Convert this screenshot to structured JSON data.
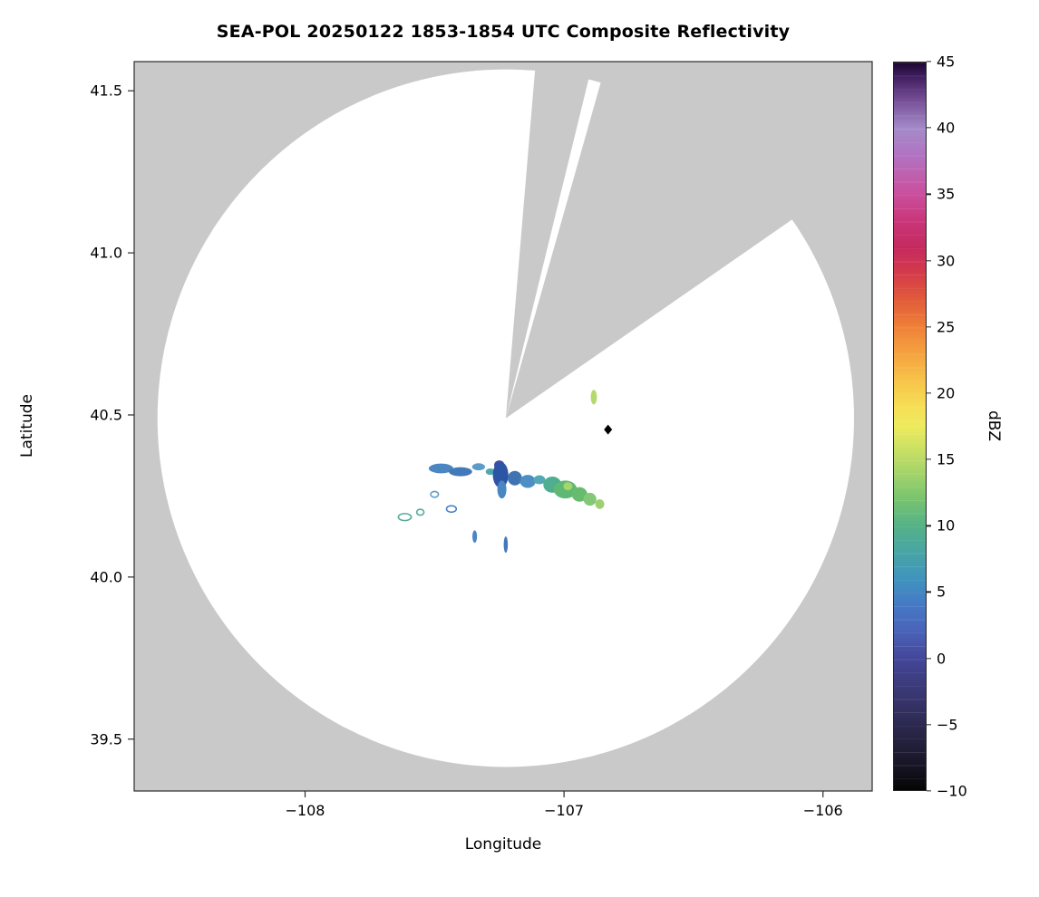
{
  "chart_data": {
    "type": "heatmap",
    "subtype": "radar_composite_reflectivity_ppi",
    "title": "SEA-POL 20250122 1853-1854 UTC Composite Reflectivity",
    "xlabel": "Longitude",
    "ylabel": "Latitude",
    "xlim": [
      -108.66,
      -105.81
    ],
    "ylim": [
      39.34,
      41.59
    ],
    "grid": false,
    "xticks": [
      {
        "v": -108,
        "label": "−108"
      },
      {
        "v": -107,
        "label": "−107"
      },
      {
        "v": -106,
        "label": "−106"
      }
    ],
    "yticks": [
      {
        "v": 39.5,
        "label": "39.5"
      },
      {
        "v": 40.0,
        "label": "40.0"
      },
      {
        "v": 40.5,
        "label": "40.5"
      },
      {
        "v": 41.0,
        "label": "41.0"
      },
      {
        "v": 41.5,
        "label": "41.5"
      }
    ],
    "nodata_color": "#c9c9c9",
    "coverage_color": "#ffffff",
    "frame_color": "#2b2b2b",
    "radar": {
      "center_lon": -107.225,
      "center_lat": 40.49,
      "radius_lon_deg": 1.345,
      "radius_lat_deg": 1.076,
      "blocked_sectors_azimuth_deg": [
        [
          6,
          17
        ],
        [
          19.5,
          61
        ]
      ]
    },
    "site_marker": {
      "lon": -106.83,
      "lat": 40.455,
      "shape": "diamond",
      "color": "#000000"
    },
    "colorbar": {
      "label": "dBZ",
      "min": -10,
      "max": 45,
      "ticks": [
        {
          "v": 45,
          "label": "45"
        },
        {
          "v": 40,
          "label": "40"
        },
        {
          "v": 35,
          "label": "35"
        },
        {
          "v": 30,
          "label": "30"
        },
        {
          "v": 25,
          "label": "25"
        },
        {
          "v": 20,
          "label": "20"
        },
        {
          "v": 15,
          "label": "15"
        },
        {
          "v": 10,
          "label": "10"
        },
        {
          "v": 5,
          "label": "5"
        },
        {
          "v": 0,
          "label": "0"
        },
        {
          "v": -5,
          "label": "−5"
        },
        {
          "v": -10,
          "label": "−10"
        }
      ],
      "stops": [
        [
          -10,
          "#050505"
        ],
        [
          -8,
          "#191627"
        ],
        [
          -6,
          "#262343"
        ],
        [
          -4,
          "#32305f"
        ],
        [
          -2,
          "#3c3b7c"
        ],
        [
          0,
          "#44479b"
        ],
        [
          2,
          "#4a63b8"
        ],
        [
          4,
          "#4579c6"
        ],
        [
          6,
          "#3f94bd"
        ],
        [
          8,
          "#48a5a4"
        ],
        [
          10,
          "#55b287"
        ],
        [
          12,
          "#78c46e"
        ],
        [
          14,
          "#a5d46a"
        ],
        [
          16,
          "#cfe263"
        ],
        [
          17.5,
          "#eeeb5e"
        ],
        [
          19,
          "#f6de55"
        ],
        [
          21,
          "#f7c349"
        ],
        [
          23,
          "#f5a23f"
        ],
        [
          25,
          "#ef8038"
        ],
        [
          27,
          "#e25c3a"
        ],
        [
          29,
          "#d43c49"
        ],
        [
          31,
          "#c52a5e"
        ],
        [
          33,
          "#c93579"
        ],
        [
          35,
          "#cb4f9c"
        ],
        [
          38,
          "#b173c2"
        ],
        [
          40,
          "#a48bc9"
        ],
        [
          42,
          "#7a539b"
        ],
        [
          44,
          "#3f1c5e"
        ],
        [
          45,
          "#1c0630"
        ]
      ]
    },
    "echoes": [
      {
        "lon": -107.475,
        "lat": 40.335,
        "w": 0.095,
        "h": 0.03,
        "color": "#4a86c2",
        "dbz": 4
      },
      {
        "lon": -107.4,
        "lat": 40.325,
        "w": 0.09,
        "h": 0.028,
        "color": "#4279b8",
        "dbz": 3
      },
      {
        "lon": -107.33,
        "lat": 40.34,
        "w": 0.05,
        "h": 0.022,
        "color": "#5d9bc9",
        "dbz": 5
      },
      {
        "lon": -107.285,
        "lat": 40.325,
        "w": 0.035,
        "h": 0.02,
        "color": "#4fa8ad",
        "dbz": 7
      },
      {
        "lon": -107.25,
        "lat": 40.345,
        "w": 0.04,
        "h": 0.03,
        "color": "#474b9e",
        "dbz": -1
      },
      {
        "lon": -107.245,
        "lat": 40.315,
        "w": 0.06,
        "h": 0.08,
        "color": "#2d55a5",
        "dbz": 0
      },
      {
        "lon": -107.24,
        "lat": 40.27,
        "w": 0.035,
        "h": 0.055,
        "color": "#4a86c2",
        "dbz": 4
      },
      {
        "lon": -107.19,
        "lat": 40.305,
        "w": 0.055,
        "h": 0.045,
        "color": "#3f74b3",
        "dbz": 2
      },
      {
        "lon": -107.14,
        "lat": 40.295,
        "w": 0.06,
        "h": 0.04,
        "color": "#4d8ec4",
        "dbz": 5
      },
      {
        "lon": -107.095,
        "lat": 40.3,
        "w": 0.045,
        "h": 0.028,
        "color": "#54a7b4",
        "dbz": 7
      },
      {
        "lon": -107.045,
        "lat": 40.285,
        "w": 0.07,
        "h": 0.05,
        "color": "#4fae8f",
        "dbz": 9
      },
      {
        "lon": -106.995,
        "lat": 40.27,
        "w": 0.09,
        "h": 0.055,
        "color": "#5fb873",
        "dbz": 11
      },
      {
        "lon": -106.985,
        "lat": 40.28,
        "w": 0.035,
        "h": 0.025,
        "color": "#a7d56b",
        "dbz": 15
      },
      {
        "lon": -106.94,
        "lat": 40.255,
        "w": 0.06,
        "h": 0.045,
        "color": "#67bb6f",
        "dbz": 12
      },
      {
        "lon": -106.9,
        "lat": 40.24,
        "w": 0.05,
        "h": 0.04,
        "color": "#83c877",
        "dbz": 13
      },
      {
        "lon": -106.862,
        "lat": 40.225,
        "w": 0.035,
        "h": 0.03,
        "color": "#9ed072",
        "dbz": 14
      },
      {
        "lon": -107.615,
        "lat": 40.185,
        "w": 0.05,
        "h": 0.022,
        "color": "#56ab9b",
        "dbz": 8,
        "outline": true
      },
      {
        "lon": -107.555,
        "lat": 40.2,
        "w": 0.028,
        "h": 0.018,
        "color": "#56ab9b",
        "dbz": 8,
        "outline": true
      },
      {
        "lon": -107.5,
        "lat": 40.255,
        "w": 0.03,
        "h": 0.018,
        "color": "#5d9bc9",
        "dbz": 5,
        "outline": true
      },
      {
        "lon": -107.435,
        "lat": 40.21,
        "w": 0.038,
        "h": 0.02,
        "color": "#4a86c2",
        "dbz": 4,
        "outline": true
      },
      {
        "lon": -107.345,
        "lat": 40.125,
        "w": 0.018,
        "h": 0.038,
        "color": "#4a86c2",
        "dbz": 4
      },
      {
        "lon": -107.225,
        "lat": 40.1,
        "w": 0.016,
        "h": 0.05,
        "color": "#4279b8",
        "dbz": 3
      },
      {
        "lon": -106.885,
        "lat": 40.555,
        "w": 0.024,
        "h": 0.045,
        "color": "#b5d96c",
        "dbz": 15
      }
    ]
  }
}
